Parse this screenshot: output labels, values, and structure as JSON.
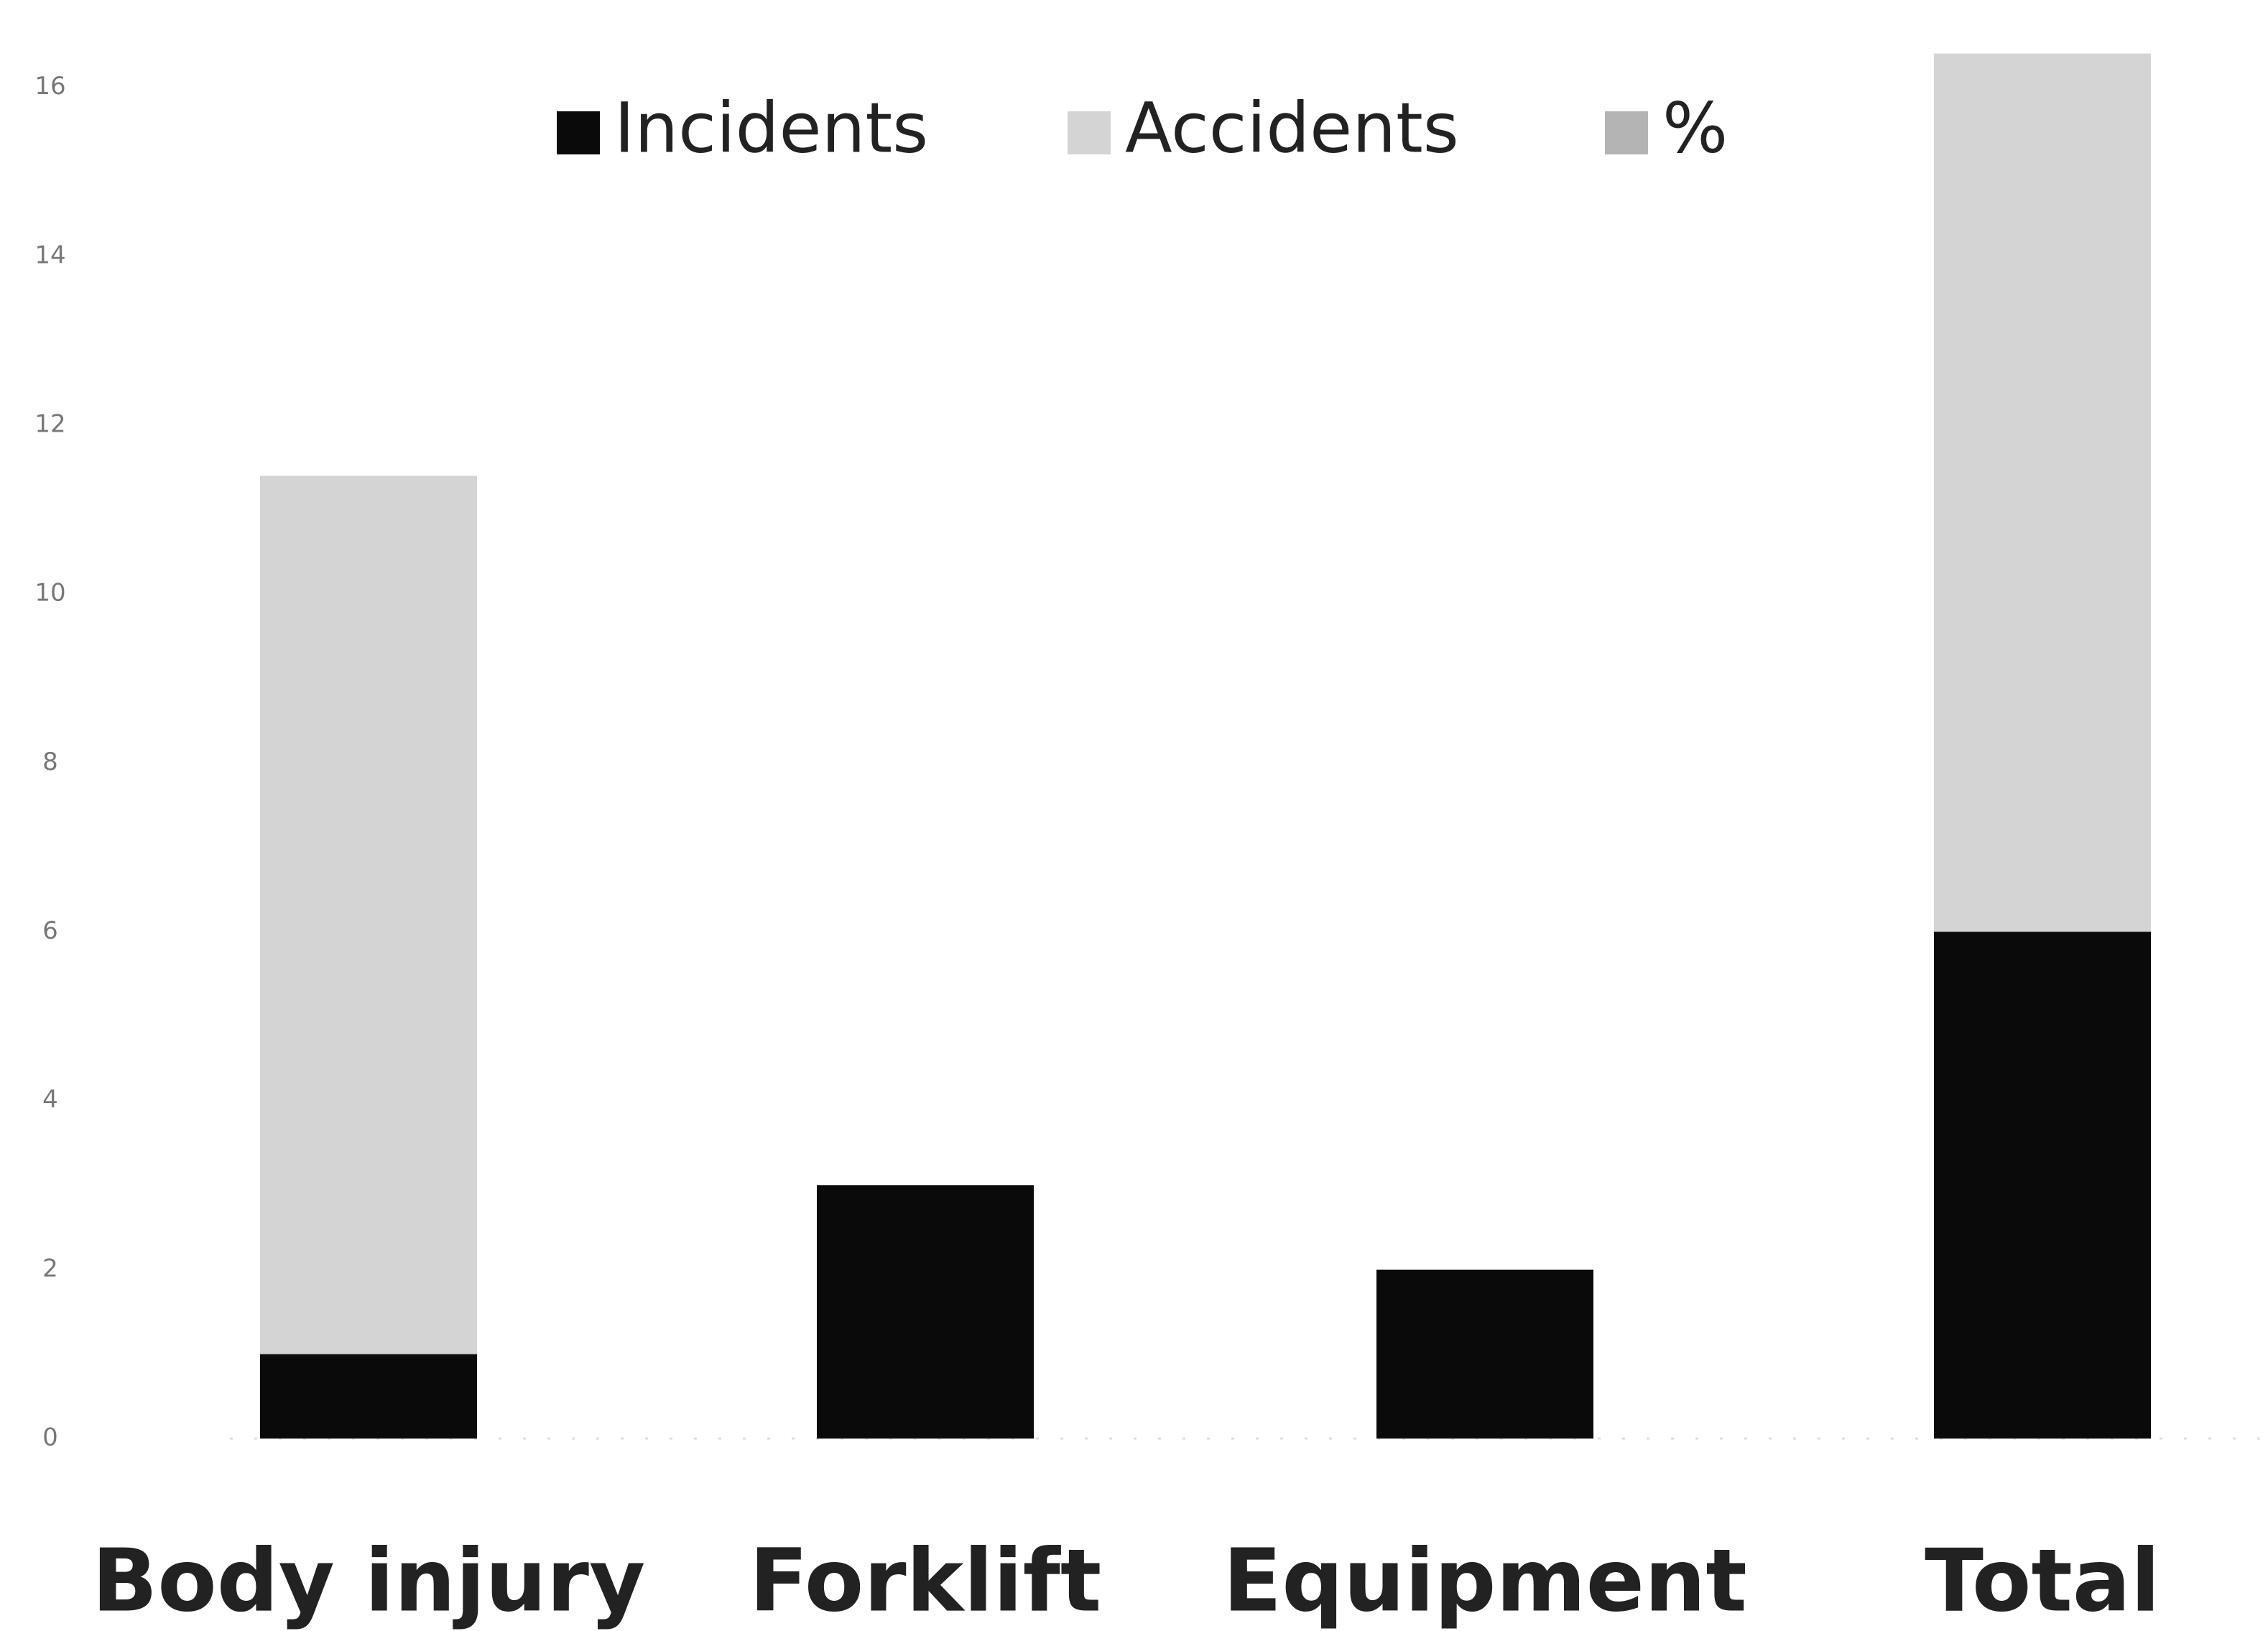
{
  "chart_data": {
    "type": "stacked_bar",
    "categories": [
      "Body injury",
      "Forklift",
      "Equipment",
      "Total"
    ],
    "series": [
      {
        "name": "Incidents",
        "color": "#0a0a0a",
        "values": [
          1,
          3,
          2,
          6
        ]
      },
      {
        "name": "Accidents",
        "color": "#d4d4d4",
        "values": [
          10.4,
          null,
          null,
          10.4
        ]
      },
      {
        "name": "%",
        "color": "#b4b4b4",
        "values": [
          null,
          null,
          null,
          null
        ]
      }
    ],
    "ylim": [
      0,
      17
    ],
    "yticks": [
      0,
      2,
      4,
      6,
      8,
      10,
      12,
      14,
      16
    ],
    "grid": false
  }
}
